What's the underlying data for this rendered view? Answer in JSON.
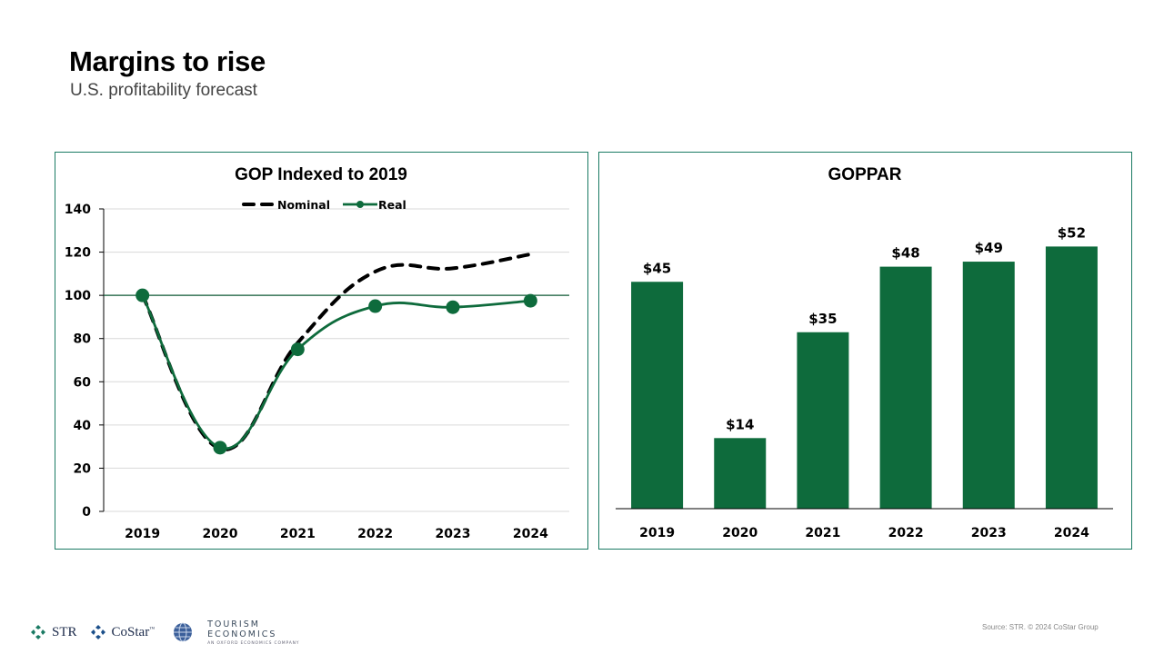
{
  "page": {
    "title": "Margins to rise",
    "subtitle": "U.S. profitability forecast",
    "source": "Source: STR. © 2024 CoStar Group",
    "logos": {
      "str": "STR",
      "costar": "CoStar",
      "costar_tm": "™",
      "tourism_line1": "TOURISM",
      "tourism_line2": "ECONOMICS",
      "tourism_sub": "AN OXFORD ECONOMICS COMPANY"
    },
    "colors": {
      "brand_green": "#0e6b3c",
      "panel_border": "#1a7a63",
      "nominal": "#000000"
    }
  },
  "chart_data": [
    {
      "type": "line",
      "title": "GOP Indexed to 2019",
      "x": [
        "2019",
        "2020",
        "2021",
        "2022",
        "2023",
        "2024"
      ],
      "series": [
        {
          "name": "Nominal",
          "style": "dashed",
          "color": "#000000",
          "values": [
            100,
            29,
            78,
            111,
            112.5,
            119
          ]
        },
        {
          "name": "Real",
          "style": "solid-markers",
          "color": "#0e6b3c",
          "values": [
            100,
            29.5,
            75,
            95,
            94.5,
            97.5
          ]
        }
      ],
      "reference_line": 100,
      "xlabel": "",
      "ylabel": "",
      "ylim": [
        0,
        140
      ],
      "yticks": [
        0,
        20,
        40,
        60,
        80,
        100,
        120,
        140
      ],
      "grid": true,
      "legend": "top-center"
    },
    {
      "type": "bar",
      "title": "GOPPAR",
      "categories": [
        "2019",
        "2020",
        "2021",
        "2022",
        "2023",
        "2024"
      ],
      "values": [
        45,
        14,
        35,
        48,
        49,
        52
      ],
      "data_labels": [
        "$45",
        "$14",
        "$35",
        "$48",
        "$49",
        "$52"
      ],
      "color": "#0e6b3c",
      "xlabel": "",
      "ylabel": "",
      "ylim": [
        0,
        60
      ],
      "grid": false
    }
  ]
}
